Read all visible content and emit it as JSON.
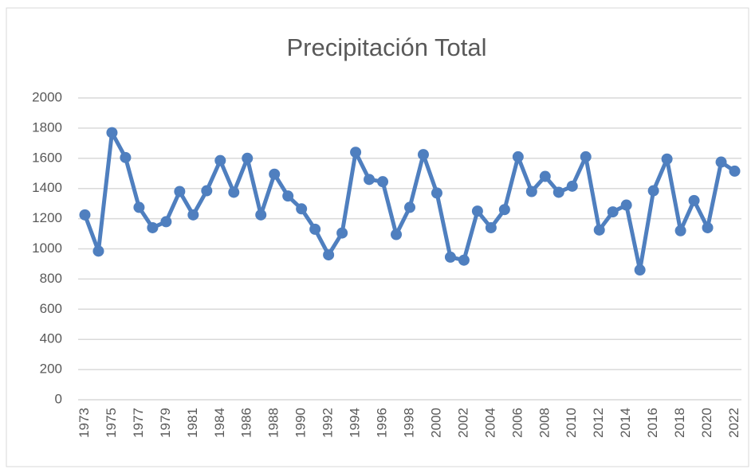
{
  "chart_data": {
    "type": "line",
    "title": "Precipitación Total",
    "categories": [
      "1973",
      null,
      "1975",
      null,
      "1977",
      null,
      "1979",
      null,
      "1981",
      null,
      "1984",
      null,
      "1986",
      null,
      "1988",
      null,
      "1990",
      null,
      "1992",
      null,
      "1994",
      null,
      "1996",
      null,
      "1998",
      null,
      "2000",
      null,
      "2002",
      null,
      "2004",
      null,
      "2006",
      null,
      "2008",
      null,
      "2010",
      null,
      "2012",
      null,
      "2014",
      null,
      "2016",
      null,
      "2018",
      null,
      "2020",
      null,
      "2022"
    ],
    "series": [
      {
        "name": "Precipitación Total",
        "color": "#4f7fbf",
        "values": [
          1225,
          985,
          1770,
          1605,
          1275,
          1140,
          1180,
          1380,
          1225,
          1385,
          1585,
          1375,
          1600,
          1225,
          1495,
          1350,
          1265,
          1130,
          960,
          1105,
          1640,
          1460,
          1445,
          1095,
          1275,
          1625,
          1370,
          945,
          925,
          1250,
          1140,
          1260,
          1610,
          1380,
          1480,
          1375,
          1415,
          1610,
          1125,
          1245,
          1290,
          860,
          1385,
          1595,
          1120,
          1320,
          1140,
          1575,
          1515
        ]
      }
    ],
    "ylim": [
      0,
      2000
    ],
    "yticks": [
      0,
      200,
      400,
      600,
      800,
      1000,
      1200,
      1400,
      1600,
      1800,
      2000
    ],
    "grid": true
  }
}
